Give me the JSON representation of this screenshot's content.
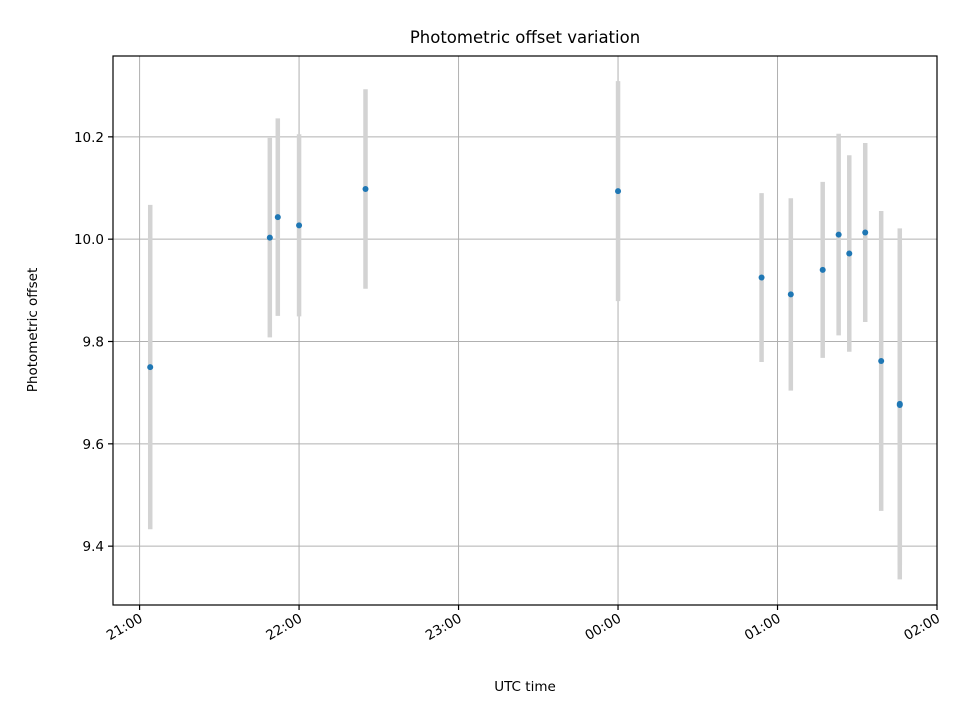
{
  "chart_data": {
    "type": "scatter",
    "title": "Photometric offset variation",
    "xlabel": "UTC time",
    "ylabel": "Photometric offset",
    "x_is_time": true,
    "xlim": [
      "20:50",
      "02:00"
    ],
    "ylim": [
      9.285,
      10.358
    ],
    "xticks": [
      "21:00",
      "22:00",
      "23:00",
      "00:00",
      "01:00",
      "02:00"
    ],
    "yticks": [
      "9.4",
      "9.6",
      "9.8",
      "10.0",
      "10.2"
    ],
    "grid": true,
    "marker_color": "#1f77b4",
    "errorbar_color": "#d3d3d3",
    "series": [
      {
        "points": [
          {
            "t": "21:04",
            "y": 9.75,
            "err": 0.317
          },
          {
            "t": "21:49",
            "y": 10.003,
            "err": 0.195
          },
          {
            "t": "21:52",
            "y": 10.043,
            "err": 0.193
          },
          {
            "t": "22:00",
            "y": 10.027,
            "err": 0.178
          },
          {
            "t": "22:25",
            "y": 10.098,
            "err": 0.195
          },
          {
            "t": "00:00",
            "y": 10.094,
            "err": 0.215
          },
          {
            "t": "00:54",
            "y": 9.925,
            "err": 0.165
          },
          {
            "t": "01:05",
            "y": 9.892,
            "err": 0.188
          },
          {
            "t": "01:17",
            "y": 9.94,
            "err": 0.172
          },
          {
            "t": "01:23",
            "y": 10.009,
            "err": 0.197
          },
          {
            "t": "01:27",
            "y": 9.972,
            "err": 0.192
          },
          {
            "t": "01:33",
            "y": 10.013,
            "err": 0.175
          },
          {
            "t": "01:39",
            "y": 9.762,
            "err": 0.293
          },
          {
            "t": "01:46",
            "y": 9.678,
            "err": 0.343
          },
          {
            "t": "01:46",
            "y": 9.676,
            "err": 0.313
          }
        ]
      }
    ]
  }
}
